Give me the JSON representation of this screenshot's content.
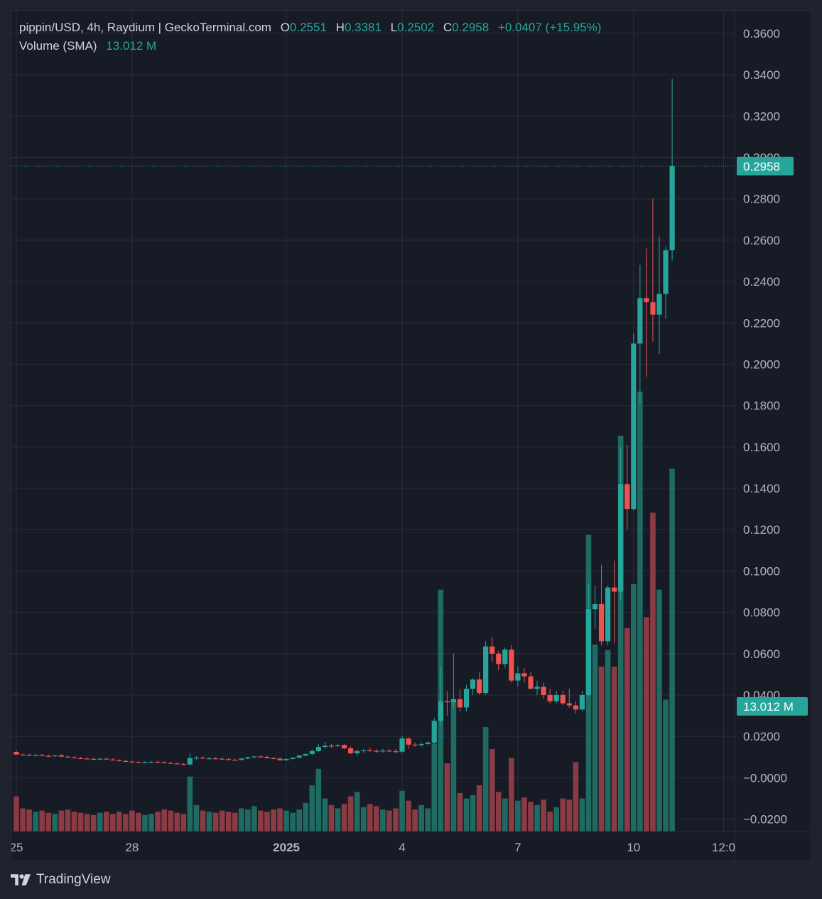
{
  "header": {
    "symbol_line": "pippin/USD, 4h, Raydium | GeckoTerminal.com",
    "open_label": "O",
    "open_value": "0.2551",
    "high_label": "H",
    "high_value": "0.3381",
    "low_label": "L",
    "low_value": "0.2502",
    "close_label": "C",
    "close_value": "0.2958",
    "change": "+0.0407 (+15.95%)",
    "volume_label": "Volume (SMA)",
    "volume_value": "13.012 M"
  },
  "price_tag": "0.2958",
  "volume_tag": "13.012 M",
  "footer": {
    "brand": "TradingView"
  },
  "colors": {
    "up": "#26a69a",
    "down": "#ef5350",
    "vol_up": "#1f6b62",
    "vol_down": "#8a3b44",
    "background": "#171b26",
    "grid": "#2a2e39",
    "text": "#b2b5be"
  },
  "chart_data": {
    "type": "candlestick",
    "title": "pippin/USD, 4h, Raydium | GeckoTerminal.com",
    "y_ticks": [
      "0.3600",
      "0.3400",
      "0.3200",
      "0.3000",
      "0.2800",
      "0.2600",
      "0.2400",
      "0.2200",
      "0.2000",
      "0.1800",
      "0.1600",
      "0.1400",
      "0.1200",
      "0.1000",
      "0.0800",
      "0.0600",
      "0.0400",
      "0.0200",
      "−0.0000",
      "−0.0200"
    ],
    "y_tick_values": [
      0.36,
      0.34,
      0.32,
      0.3,
      0.28,
      0.26,
      0.24,
      0.22,
      0.2,
      0.18,
      0.16,
      0.14,
      0.12,
      0.1,
      0.08,
      0.06,
      0.04,
      0.02,
      0,
      -0.02
    ],
    "ylim": [
      -0.026,
      0.371
    ],
    "x_ticks": [
      {
        "label": "25",
        "bold": false,
        "bar": 0
      },
      {
        "label": "28",
        "bold": false,
        "bar": 18
      },
      {
        "label": "2025",
        "bold": true,
        "bar": 42
      },
      {
        "label": "4",
        "bold": false,
        "bar": 60
      },
      {
        "label": "7",
        "bold": false,
        "bar": 78
      },
      {
        "label": "10",
        "bold": false,
        "bar": 96
      },
      {
        "label": "12:0",
        "bold": false,
        "bar": 110
      }
    ],
    "last_price": 0.2958,
    "volume_ylim": [
      0,
      32
    ],
    "candles": [
      [
        0.0125,
        0.0132,
        0.0115,
        0.0112,
        3.2
      ],
      [
        0.0112,
        0.0118,
        0.0108,
        0.011,
        2.1
      ],
      [
        0.011,
        0.0116,
        0.0105,
        0.0107,
        2.0
      ],
      [
        0.0107,
        0.0114,
        0.0104,
        0.0109,
        1.8
      ],
      [
        0.0109,
        0.0115,
        0.0104,
        0.0106,
        1.9
      ],
      [
        0.0106,
        0.0112,
        0.0102,
        0.0104,
        1.7
      ],
      [
        0.0104,
        0.011,
        0.01,
        0.0108,
        1.6
      ],
      [
        0.0108,
        0.0113,
        0.0101,
        0.0102,
        1.9
      ],
      [
        0.0102,
        0.0108,
        0.0098,
        0.0098,
        2.0
      ],
      [
        0.0098,
        0.0104,
        0.0094,
        0.0095,
        1.8
      ],
      [
        0.0095,
        0.0101,
        0.0091,
        0.0093,
        1.7
      ],
      [
        0.0093,
        0.0099,
        0.0089,
        0.0091,
        1.6
      ],
      [
        0.0091,
        0.0097,
        0.0086,
        0.0089,
        1.5
      ],
      [
        0.0089,
        0.0096,
        0.0085,
        0.0092,
        1.7
      ],
      [
        0.0092,
        0.0098,
        0.0087,
        0.0088,
        1.8
      ],
      [
        0.0088,
        0.0094,
        0.0083,
        0.0084,
        1.6
      ],
      [
        0.0084,
        0.0089,
        0.0079,
        0.0081,
        1.8
      ],
      [
        0.0081,
        0.0087,
        0.0076,
        0.0078,
        1.6
      ],
      [
        0.0078,
        0.0084,
        0.0073,
        0.0075,
        1.9
      ],
      [
        0.0075,
        0.0081,
        0.0071,
        0.0073,
        1.7
      ],
      [
        0.0073,
        0.0079,
        0.0069,
        0.0075,
        1.5
      ],
      [
        0.0075,
        0.0081,
        0.007,
        0.0077,
        1.6
      ],
      [
        0.0077,
        0.0083,
        0.0072,
        0.0074,
        1.8
      ],
      [
        0.0074,
        0.008,
        0.007,
        0.0072,
        2.0
      ],
      [
        0.0072,
        0.0078,
        0.0067,
        0.0069,
        1.9
      ],
      [
        0.0069,
        0.0074,
        0.0064,
        0.0066,
        1.7
      ],
      [
        0.0066,
        0.0071,
        0.0062,
        0.0064,
        1.6
      ],
      [
        0.0064,
        0.0118,
        0.0061,
        0.0095,
        5.0
      ],
      [
        0.0095,
        0.0105,
        0.0086,
        0.0097,
        2.4
      ],
      [
        0.0097,
        0.0103,
        0.0091,
        0.0093,
        1.9
      ],
      [
        0.0093,
        0.0099,
        0.0088,
        0.0094,
        1.8
      ],
      [
        0.0094,
        0.01,
        0.0089,
        0.0092,
        1.7
      ],
      [
        0.0092,
        0.0098,
        0.0087,
        0.009,
        1.9
      ],
      [
        0.009,
        0.0096,
        0.0085,
        0.0087,
        1.8
      ],
      [
        0.0087,
        0.0093,
        0.0083,
        0.0086,
        1.7
      ],
      [
        0.0086,
        0.0095,
        0.0084,
        0.0093,
        2.1
      ],
      [
        0.0093,
        0.0101,
        0.0089,
        0.0099,
        2.0
      ],
      [
        0.0099,
        0.0105,
        0.0094,
        0.0103,
        2.3
      ],
      [
        0.0103,
        0.0108,
        0.0097,
        0.0101,
        1.9
      ],
      [
        0.0101,
        0.0106,
        0.0094,
        0.0095,
        1.8
      ],
      [
        0.0095,
        0.01,
        0.0089,
        0.0092,
        2.0
      ],
      [
        0.0092,
        0.0099,
        0.0087,
        0.0084,
        2.1
      ],
      [
        0.0084,
        0.0093,
        0.0082,
        0.0091,
        1.9
      ],
      [
        0.0091,
        0.0099,
        0.0088,
        0.0097,
        1.7
      ],
      [
        0.0097,
        0.011,
        0.0094,
        0.0107,
        2.0
      ],
      [
        0.0107,
        0.0118,
        0.0104,
        0.0115,
        2.6
      ],
      [
        0.0115,
        0.0137,
        0.011,
        0.0129,
        4.2
      ],
      [
        0.0129,
        0.0163,
        0.0124,
        0.0149,
        5.7
      ],
      [
        0.0149,
        0.0174,
        0.014,
        0.0155,
        3.0
      ],
      [
        0.0155,
        0.0164,
        0.0144,
        0.0153,
        2.4
      ],
      [
        0.0153,
        0.0162,
        0.0148,
        0.0158,
        2.1
      ],
      [
        0.0158,
        0.0162,
        0.0139,
        0.0142,
        2.5
      ],
      [
        0.0142,
        0.0152,
        0.0114,
        0.0118,
        3.2
      ],
      [
        0.0118,
        0.0137,
        0.0104,
        0.0129,
        3.6
      ],
      [
        0.0129,
        0.0137,
        0.0121,
        0.0133,
        2.2
      ],
      [
        0.0133,
        0.0146,
        0.0125,
        0.013,
        2.5
      ],
      [
        0.013,
        0.0138,
        0.0121,
        0.0128,
        2.3
      ],
      [
        0.0128,
        0.014,
        0.012,
        0.0131,
        2.0
      ],
      [
        0.0131,
        0.0139,
        0.0124,
        0.0128,
        1.9
      ],
      [
        0.0128,
        0.014,
        0.0118,
        0.0126,
        2.1
      ],
      [
        0.0126,
        0.02,
        0.012,
        0.019,
        3.7
      ],
      [
        0.019,
        0.0195,
        0.014,
        0.016,
        2.8
      ],
      [
        0.016,
        0.017,
        0.015,
        0.0158,
        2.0
      ],
      [
        0.0158,
        0.0167,
        0.015,
        0.0163,
        2.4
      ],
      [
        0.0163,
        0.0175,
        0.016,
        0.017,
        2.1
      ],
      [
        0.017,
        0.029,
        0.016,
        0.0275,
        8.0
      ],
      [
        0.0275,
        0.054,
        0.025,
        0.037,
        22.0
      ],
      [
        0.037,
        0.042,
        0.03,
        0.0365,
        6.2
      ],
      [
        0.0365,
        0.06,
        0.033,
        0.038,
        12.0
      ],
      [
        0.038,
        0.043,
        0.032,
        0.034,
        3.5
      ],
      [
        0.034,
        0.045,
        0.032,
        0.043,
        3.0
      ],
      [
        0.043,
        0.048,
        0.04,
        0.0475,
        3.3
      ],
      [
        0.0475,
        0.051,
        0.04,
        0.041,
        4.2
      ],
      [
        0.041,
        0.066,
        0.04,
        0.0635,
        9.5
      ],
      [
        0.0635,
        0.068,
        0.056,
        0.06,
        7.5
      ],
      [
        0.06,
        0.0615,
        0.052,
        0.055,
        3.6
      ],
      [
        0.055,
        0.063,
        0.053,
        0.062,
        3.0
      ],
      [
        0.062,
        0.064,
        0.046,
        0.047,
        6.7
      ],
      [
        0.047,
        0.054,
        0.044,
        0.0505,
        2.8
      ],
      [
        0.0505,
        0.053,
        0.046,
        0.049,
        3.1
      ],
      [
        0.049,
        0.051,
        0.043,
        0.043,
        2.7
      ],
      [
        0.043,
        0.047,
        0.04,
        0.044,
        2.4
      ],
      [
        0.044,
        0.046,
        0.038,
        0.04,
        2.9
      ],
      [
        0.04,
        0.043,
        0.036,
        0.037,
        1.8
      ],
      [
        0.037,
        0.042,
        0.036,
        0.04,
        2.2
      ],
      [
        0.04,
        0.042,
        0.035,
        0.036,
        3.0
      ],
      [
        0.036,
        0.043,
        0.034,
        0.035,
        2.9
      ],
      [
        0.035,
        0.037,
        0.031,
        0.033,
        6.3
      ],
      [
        0.033,
        0.042,
        0.032,
        0.04,
        3.0
      ],
      [
        0.04,
        0.094,
        0.039,
        0.0815,
        27.0
      ],
      [
        0.0815,
        0.093,
        0.072,
        0.084,
        17.0
      ],
      [
        0.084,
        0.103,
        0.064,
        0.066,
        15.0
      ],
      [
        0.066,
        0.093,
        0.064,
        0.092,
        16.5
      ],
      [
        0.092,
        0.105,
        0.065,
        0.09,
        15.0
      ],
      [
        0.09,
        0.16,
        0.086,
        0.142,
        36.0
      ],
      [
        0.142,
        0.161,
        0.12,
        0.13,
        18.5
      ],
      [
        0.13,
        0.215,
        0.129,
        0.21,
        22.5
      ],
      [
        0.21,
        0.248,
        0.181,
        0.232,
        40.0
      ],
      [
        0.232,
        0.256,
        0.194,
        0.23,
        19.5
      ],
      [
        0.23,
        0.28,
        0.211,
        0.224,
        29.0
      ],
      [
        0.224,
        0.262,
        0.205,
        0.234,
        22.0
      ],
      [
        0.234,
        0.257,
        0.222,
        0.2551,
        12.0
      ],
      [
        0.2551,
        0.3381,
        0.2502,
        0.2958,
        33.0
      ]
    ]
  }
}
